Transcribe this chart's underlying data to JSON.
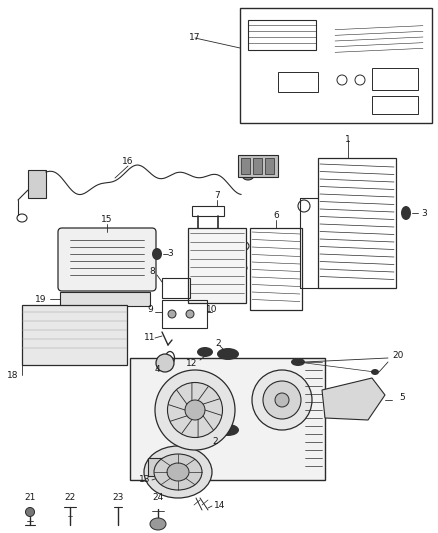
{
  "bg_color": "#ffffff",
  "fig_width": 4.38,
  "fig_height": 5.33,
  "dpi": 100,
  "line_color": "#2a2a2a",
  "text_color": "#1a1a1a",
  "gray1": "#cccccc",
  "gray2": "#aaaaaa",
  "gray3": "#888888",
  "dark": "#333333"
}
